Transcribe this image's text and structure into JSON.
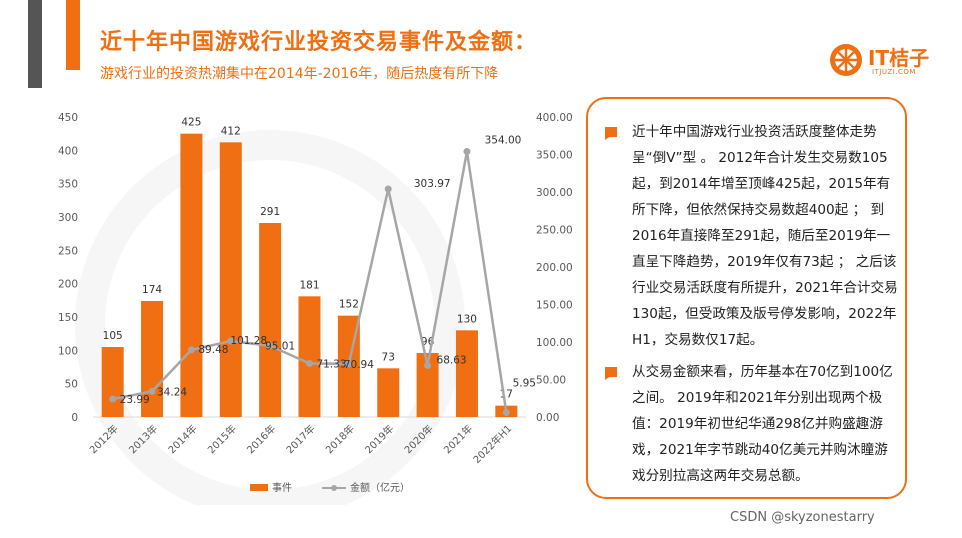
{
  "header": {
    "title": "近十年中国游戏行业投资交易事件及金额：",
    "subtitle": "游戏行业的投资热潮集中在2014年-2016年，随后热度有所下降"
  },
  "logo": {
    "text": "IT桔子",
    "sub": "ITJUZI.COM",
    "icon": "orange-slice-icon"
  },
  "panel": {
    "paragraphs": [
      "近十年中国游戏行业投资活跃度整体走势呈“倒V”型 。 2012年合计发生交易数105起，到2014年增至顶峰425起，2015年有所下降，但依然保持交易数超400起 ； 到2016年直接降至291起，随后至2019年一直呈下降趋势，2019年仅有73起 ； 之后该行业交易活跃度有所提升，2021年合计交易130起，但受政策及版号停发影响，2022年H1，交易数仅17起。",
      "从交易金额来看，历年基本在70亿到100亿之间。 2019年和2021年分别出现两个极值：2019年初世纪华通298亿并购盛趣游戏，2021年字节跳动40亿美元并购沐瞳游戏分别拉高这两年交易总额。"
    ],
    "bullet_icon": "speech-flag-icon"
  },
  "footer": {
    "watermark": "CSDN @skyzonestarry"
  },
  "colors": {
    "accent": "#ef6f12",
    "line": "#a6a6a6",
    "axis_text": "#595959"
  },
  "chart_data": {
    "type": "bar",
    "categories": [
      "2012年",
      "2013年",
      "2014年",
      "2015年",
      "2016年",
      "2017年",
      "2018年",
      "2019年",
      "2020年",
      "2021年",
      "2022年H1"
    ],
    "series": [
      {
        "name": "事件",
        "type": "bar",
        "axis": "left",
        "values": [
          105,
          174,
          425,
          412,
          291,
          181,
          152,
          73,
          96,
          130,
          17
        ]
      },
      {
        "name": "金额（亿元）",
        "type": "line",
        "axis": "right",
        "values": [
          23.99,
          34.24,
          89.48,
          101.28,
          95.01,
          71.33,
          70.94,
          303.97,
          68.63,
          354.0,
          5.95
        ],
        "labels": [
          "23.99",
          "34.24",
          "89.48",
          "101.28",
          "95.01",
          "71.33",
          "70.94",
          "303.97",
          "68.63",
          "354.00",
          "5.95"
        ]
      }
    ],
    "y_left": {
      "ticks": [
        0,
        50,
        100,
        150,
        200,
        250,
        300,
        350,
        400,
        450
      ],
      "ylim": [
        0,
        450
      ]
    },
    "y_right": {
      "ticks": [
        "0.00",
        "50.00",
        "100.00",
        "150.00",
        "200.00",
        "250.00",
        "300.00",
        "350.00",
        "400.00"
      ],
      "ylim": [
        0,
        400
      ]
    },
    "legend": {
      "position": "bottom",
      "items": [
        "事件",
        "金额（亿元）"
      ]
    },
    "grid": false
  }
}
